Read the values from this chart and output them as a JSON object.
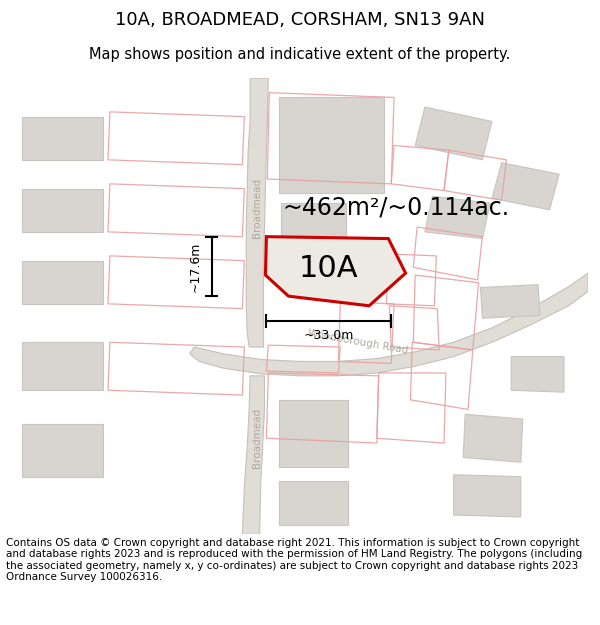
{
  "title": "10A, BROADMEAD, CORSHAM, SN13 9AN",
  "subtitle": "Map shows position and indicative extent of the property.",
  "footer": "Contains OS data © Crown copyright and database right 2021. This information is subject to Crown copyright and database rights 2023 and is reproduced with the permission of HM Land Registry. The polygons (including the associated geometry, namely x, y co-ordinates) are subject to Crown copyright and database rights 2023 Ordnance Survey 100026316.",
  "area_label": "~462m²/~0.114ac.",
  "plot_label": "10A",
  "width_label": "~33.0m",
  "height_label": "~17.6m",
  "map_bg": "#f0ede8",
  "road_fill": "#e8e4de",
  "road_edge": "#e8c8c8",
  "plot_outline_color": "#e8a0a0",
  "building_color": "#d8d5d0",
  "building_edge": "#c8c5c0",
  "plot_fill": "#ede9e4",
  "plot_edge": "#cc0000",
  "road_label_color": "#b0a8a0",
  "title_fontsize": 13,
  "subtitle_fontsize": 10.5,
  "footer_fontsize": 7.5,
  "area_fontsize": 17,
  "plot_id_fontsize": 22,
  "dim_fontsize": 9
}
